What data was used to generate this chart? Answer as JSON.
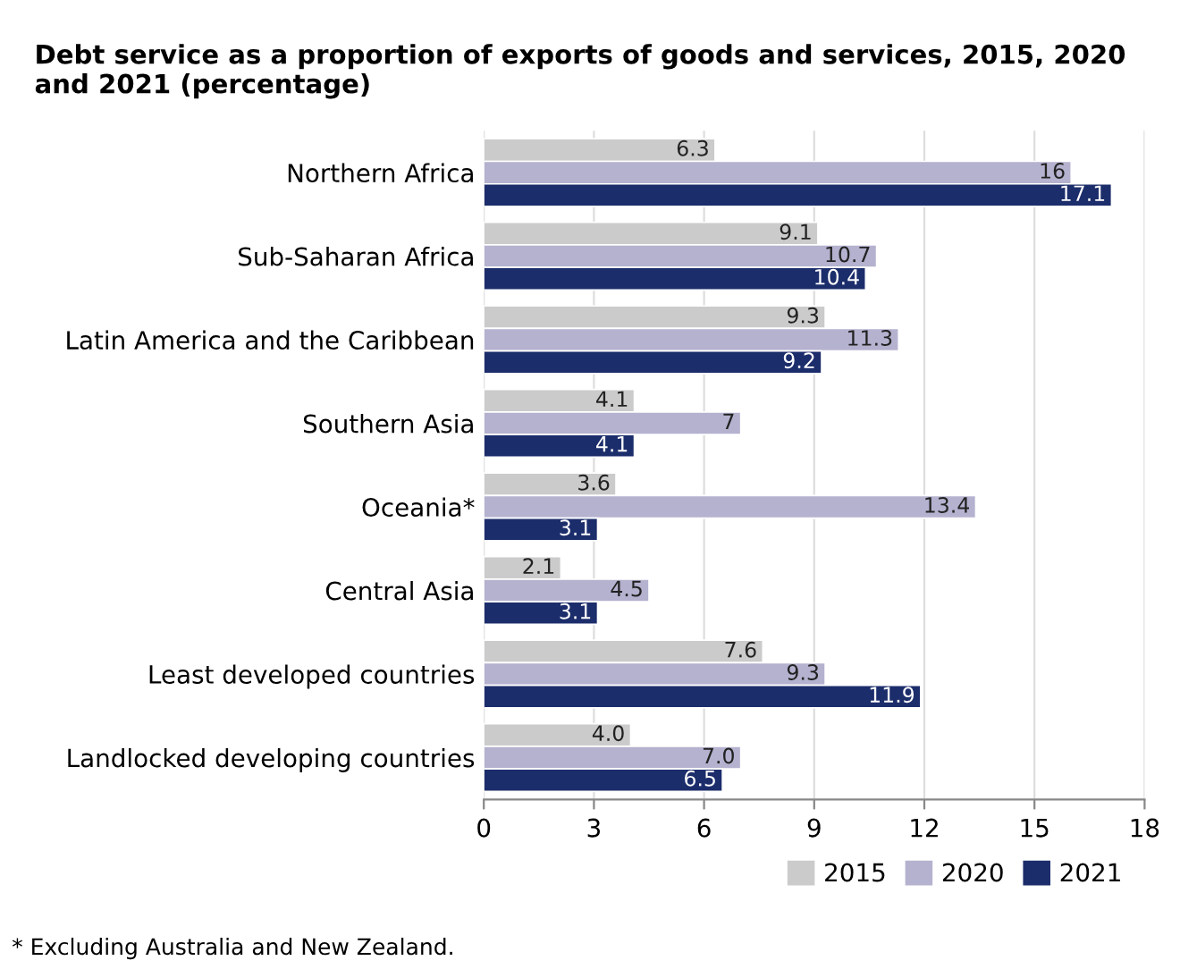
{
  "chart_data": {
    "type": "bar",
    "orientation": "horizontal",
    "title": "Debt service as a proportion of exports of goods and services, 2015, 2020 and 2021 (percentage)",
    "categories": [
      "Northern Africa",
      "Sub-Saharan Africa",
      "Latin America and the Caribbean",
      "Southern Asia",
      "Oceania*",
      "Central Asia",
      "Least developed countries",
      "Landlocked developing countries"
    ],
    "series": [
      {
        "name": "2015",
        "color": "#cbcbcb",
        "values": [
          6.3,
          9.1,
          9.3,
          4.1,
          3.6,
          2.1,
          7.6,
          4.0
        ],
        "value_labels": [
          "6.3",
          "9.1",
          "9.3",
          "4.1",
          "3.6",
          "2.1",
          "7.6",
          "4.0"
        ]
      },
      {
        "name": "2020",
        "color": "#b4b2cf",
        "values": [
          16,
          10.7,
          11.3,
          7,
          13.4,
          4.5,
          9.3,
          7.0
        ],
        "value_labels": [
          "16",
          "10.7",
          "11.3",
          "7",
          "13.4",
          "4.5",
          "9.3",
          "7.0"
        ]
      },
      {
        "name": "2021",
        "color": "#1c2d6b",
        "values": [
          17.1,
          10.4,
          9.2,
          4.1,
          3.1,
          3.1,
          11.9,
          6.5
        ],
        "value_labels": [
          "17.1",
          "10.4",
          "9.2",
          "4.1",
          "3.1",
          "3.1",
          "11.9",
          "6.5"
        ]
      }
    ],
    "xlim": [
      0,
      18
    ],
    "xticks": [
      0,
      3,
      6,
      9,
      12,
      15,
      18
    ],
    "grid": "x",
    "legend": "bottom right",
    "annotations": [
      "* Excluding Australia and New Zealand."
    ]
  }
}
